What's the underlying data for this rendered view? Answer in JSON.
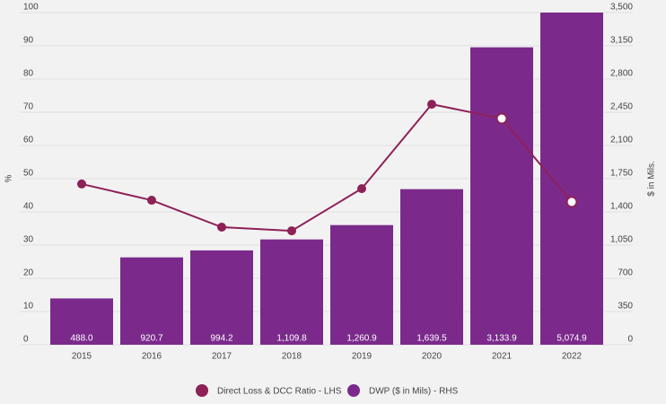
{
  "chart_data": {
    "type": "bar-line",
    "categories": [
      "2015",
      "2016",
      "2017",
      "2018",
      "2019",
      "2020",
      "2021",
      "2022"
    ],
    "ylabel": "%",
    "y2label": "$ in Mils.",
    "ylim": [
      0,
      100
    ],
    "yticks": [
      0,
      10,
      20,
      30,
      40,
      50,
      60,
      70,
      80,
      90,
      100
    ],
    "y2lim": [
      0,
      3500
    ],
    "y2ticks": [
      0,
      350,
      700,
      {
        "value": 1050,
        "label": "1,050"
      },
      {
        "value": 1400,
        "label": "1,400"
      },
      {
        "value": 1750,
        "label": "1,750"
      },
      {
        "value": 2100,
        "label": "2,100"
      },
      {
        "value": 2450,
        "label": "2,450"
      },
      {
        "value": 2800,
        "label": "2,800"
      },
      {
        "value": 3150,
        "label": "3,150"
      },
      {
        "value": 3500,
        "label": "3,500"
      }
    ],
    "grid": true,
    "series": [
      {
        "name": "Direct Loss & DCC Ratio - LHS",
        "type": "line",
        "color": "#8e2157",
        "values": [
          48.4,
          43.5,
          35.4,
          34.3,
          47.0,
          72.4,
          68.1,
          43.0
        ]
      },
      {
        "name": "DWP ($ in Mils) - RHS",
        "type": "bar",
        "axis": "y2",
        "color": "#7b2a8c",
        "values": [
          488.0,
          920.7,
          994.2,
          1109.8,
          1260.9,
          1639.5,
          3133.9,
          5074.9
        ],
        "value_labels": [
          "488.0",
          "920.7",
          "994.2",
          "1,109.8",
          "1,260.9",
          "1,639.5",
          "3,133.9",
          "5,074.9"
        ]
      }
    ]
  }
}
